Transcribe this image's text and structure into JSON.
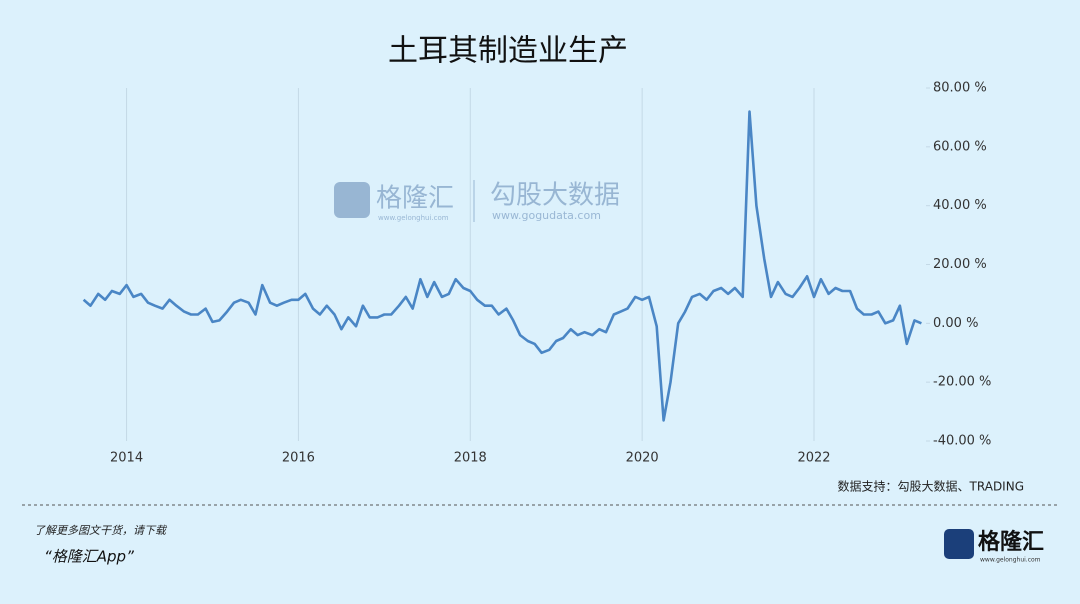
{
  "chart_data": {
    "type": "line",
    "title": "土耳其制造业生产",
    "color": "#4a86c5",
    "x": [
      2013.5,
      2013.58,
      2013.67,
      2013.75,
      2013.83,
      2013.92,
      2014,
      2014.08,
      2014.17,
      2014.25,
      2014.33,
      2014.42,
      2014.5,
      2014.58,
      2014.67,
      2014.75,
      2014.83,
      2014.92,
      2015,
      2015.08,
      2015.17,
      2015.25,
      2015.33,
      2015.42,
      2015.5,
      2015.58,
      2015.67,
      2015.75,
      2015.83,
      2015.92,
      2016,
      2016.08,
      2016.17,
      2016.25,
      2016.33,
      2016.42,
      2016.5,
      2016.58,
      2016.67,
      2016.75,
      2016.83,
      2016.92,
      2017,
      2017.08,
      2017.17,
      2017.25,
      2017.33,
      2017.42,
      2017.5,
      2017.58,
      2017.67,
      2017.75,
      2017.83,
      2017.92,
      2018,
      2018.08,
      2018.17,
      2018.25,
      2018.33,
      2018.42,
      2018.5,
      2018.58,
      2018.67,
      2018.75,
      2018.83,
      2018.92,
      2019,
      2019.08,
      2019.17,
      2019.25,
      2019.33,
      2019.42,
      2019.5,
      2019.58,
      2019.67,
      2019.75,
      2019.83,
      2019.92,
      2020,
      2020.08,
      2020.17,
      2020.25,
      2020.33,
      2020.42,
      2020.5,
      2020.58,
      2020.67,
      2020.75,
      2020.83,
      2020.92,
      2021,
      2021.08,
      2021.17,
      2021.25,
      2021.33,
      2021.42,
      2021.5,
      2021.58,
      2021.67,
      2021.75,
      2021.83,
      2021.92,
      2022,
      2022.08,
      2022.17,
      2022.25,
      2022.33,
      2022.42,
      2022.5,
      2022.58,
      2022.67,
      2022.75,
      2022.83,
      2022.92,
      2023,
      2023.08,
      2023.17,
      2023.25
    ],
    "values": [
      8,
      6,
      10,
      8,
      11,
      10,
      13,
      9,
      10,
      7,
      6,
      5,
      8,
      6,
      4,
      3,
      3,
      5,
      0.5,
      1,
      4,
      7,
      8,
      7,
      3,
      13,
      7,
      6,
      7,
      8,
      8,
      10,
      5,
      3,
      6,
      3,
      -2,
      2,
      -1,
      6,
      2,
      2,
      3,
      3,
      6,
      9,
      5,
      15,
      9,
      14,
      9,
      10,
      15,
      12,
      11,
      8,
      6,
      6,
      3,
      5,
      1,
      -4,
      -6,
      -7,
      -10,
      -9,
      -6,
      -5,
      -2,
      -4,
      -3,
      -4,
      -2,
      -3,
      3,
      4,
      5,
      9,
      8,
      9,
      -1,
      -33,
      -20,
      0,
      4,
      9,
      10,
      8,
      11,
      12,
      10,
      12,
      9,
      72,
      40,
      22,
      9,
      14,
      10,
      9,
      12,
      16,
      9,
      15,
      10,
      12,
      11,
      11,
      5,
      3,
      3,
      4,
      0,
      1,
      6,
      -7,
      1,
      0
    ],
    "xlim": [
      2013.4,
      2023.35
    ],
    "xticks": [
      2014,
      2016,
      2018,
      2020,
      2022
    ],
    "ylim": [
      -40,
      80
    ],
    "yticks": [
      {
        "value": -40,
        "label": "-40.00 %"
      },
      {
        "value": -20,
        "label": "-20.00 %"
      },
      {
        "value": 0,
        "label": "0.00 %"
      },
      {
        "value": 20,
        "label": "20.00 %"
      },
      {
        "value": 40,
        "label": "40.00 %"
      },
      {
        "value": 60,
        "label": "60.00 %"
      },
      {
        "value": 80,
        "label": "80.00 %"
      }
    ],
    "xgrid": true,
    "source": "数据支持：勾股大数据、TRADING"
  },
  "watermark": {
    "brand": "格隆汇",
    "brand_url": "www.gelonghui.com",
    "data_brand": "勾股大数据",
    "data_url": "www.gogudata.com"
  },
  "footer": {
    "line1": "了解更多图文干货，请下载",
    "line2": "“格隆汇App”",
    "logo": "格隆汇",
    "logo_url": "www.gelonghui.com"
  }
}
